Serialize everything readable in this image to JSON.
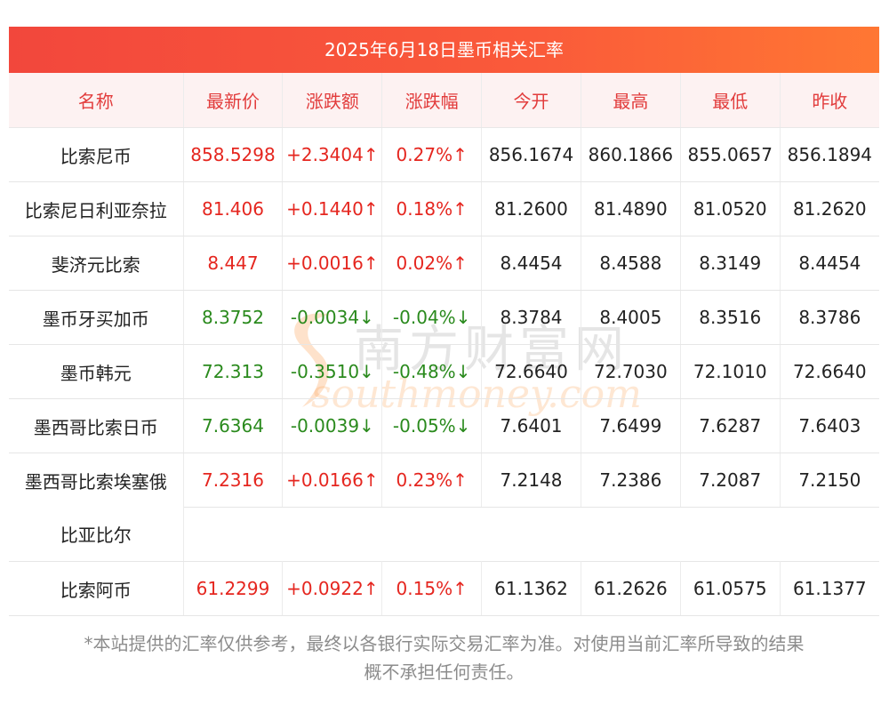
{
  "title": "2025年6月18日墨币相关汇率",
  "headers": [
    "名称",
    "最新价",
    "涨跌额",
    "涨跌幅",
    "今开",
    "最高",
    "最低",
    "昨收"
  ],
  "rows": [
    {
      "name": "比索尼币",
      "latest": "858.5298",
      "change": "+2.3404↑",
      "pct": "0.27%↑",
      "open": "856.1674",
      "high": "860.1866",
      "low": "855.0657",
      "prev": "856.1894"
    },
    {
      "name": "比索尼日利亚奈拉",
      "latest": "81.406",
      "change": "+0.1440↑",
      "pct": "0.18%↑",
      "open": "81.2600",
      "high": "81.4890",
      "low": "81.0520",
      "prev": "81.2620"
    },
    {
      "name": "斐济元比索",
      "latest": "8.447",
      "change": "+0.0016↑",
      "pct": "0.02%↑",
      "open": "8.4454",
      "high": "8.4588",
      "low": "8.3149",
      "prev": "8.4454"
    },
    {
      "name": "墨币牙买加币",
      "latest": "8.3752",
      "change": "-0.0034↓",
      "pct": "-0.04%↓",
      "open": "8.3784",
      "high": "8.4005",
      "low": "8.3516",
      "prev": "8.3786"
    },
    {
      "name": "墨币韩元",
      "latest": "72.313",
      "change": "-0.3510↓",
      "pct": "-0.48%↓",
      "open": "72.6640",
      "high": "72.7030",
      "low": "72.1010",
      "prev": "72.6640"
    },
    {
      "name": "墨西哥比索日币",
      "latest": "7.6364",
      "change": "-0.0039↓",
      "pct": "-0.05%↓",
      "open": "7.6401",
      "high": "7.6499",
      "low": "7.6287",
      "prev": "7.6403"
    },
    {
      "name": "墨西哥比索埃塞俄",
      "latest": "7.2316",
      "change": "+0.0166↑",
      "pct": "0.23%↑",
      "open": "7.2148",
      "high": "7.2386",
      "low": "7.2087",
      "prev": "7.2150"
    },
    {
      "name": "比亚比尔"
    },
    {
      "name": "比索阿币",
      "latest": "61.2299",
      "change": "+0.0922↑",
      "pct": "0.15%↑",
      "open": "61.1362",
      "high": "61.2626",
      "low": "61.0575",
      "prev": "61.1377"
    }
  ],
  "watermark": {
    "cn": "南方财富网",
    "en": "southmoney.com"
  },
  "footnote": [
    "*本站提供的汇率仅供参考，最终以各银行实际交易汇率为准。对使用当前汇率所导致的结果",
    "概不承担任何责任。"
  ],
  "colors": {
    "header_bg": "#f2473c",
    "header_text": "#e23c3c",
    "up": "#e5261f",
    "down": "#2a8a1d"
  }
}
